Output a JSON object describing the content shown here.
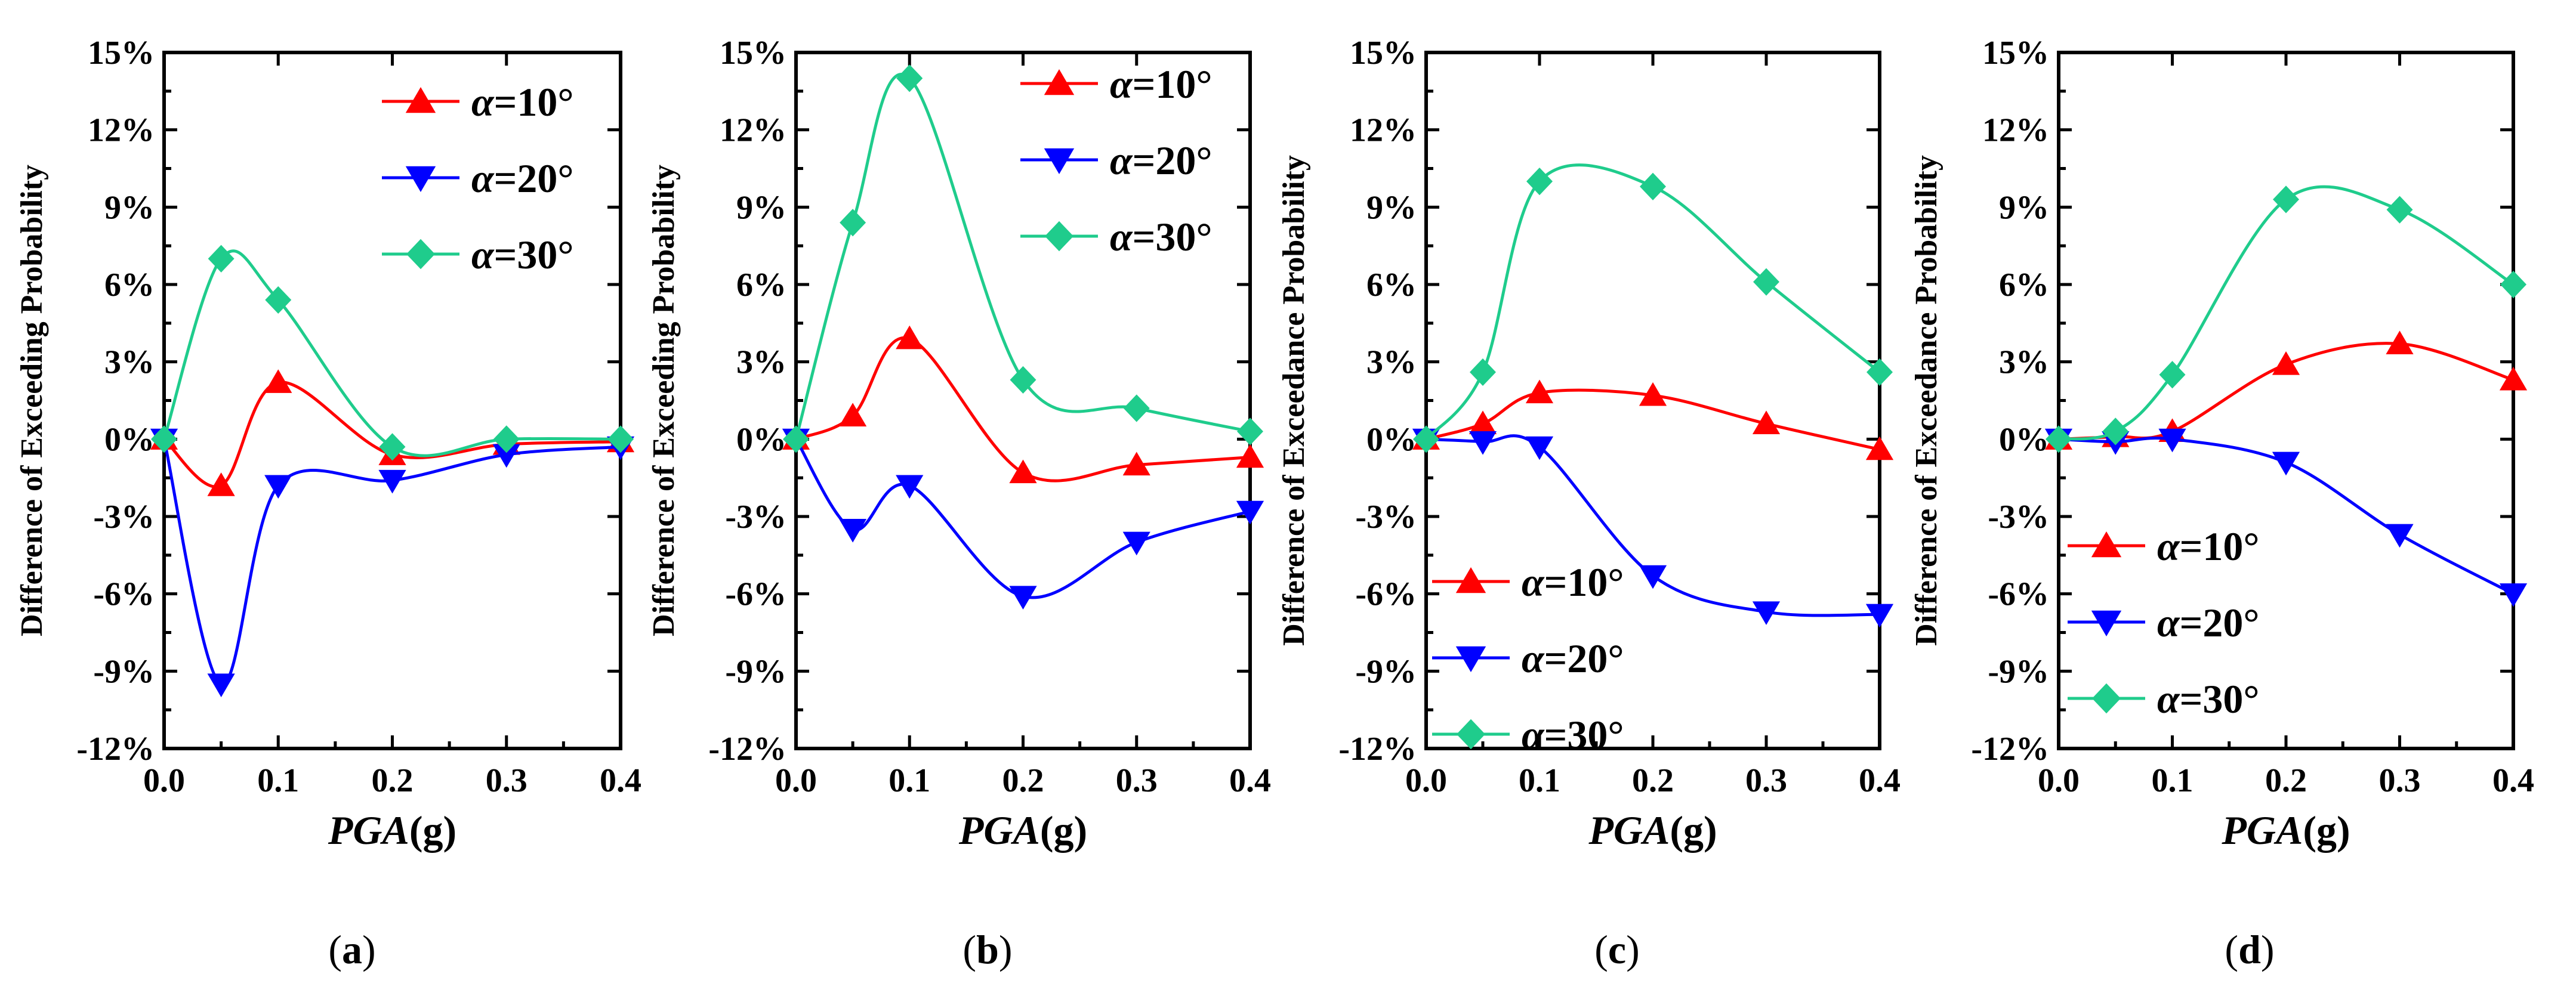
{
  "chart_data": [
    {
      "type": "line",
      "label": "a",
      "ylabel": "Difference of Exceeding Probability",
      "xlabel_main": "PGA",
      "xlabel_unit": "(g)",
      "x": [
        0.0,
        0.05,
        0.1,
        0.2,
        0.3,
        0.4
      ],
      "xlim": [
        0.0,
        0.4
      ],
      "ylim": [
        -12,
        15
      ],
      "xticks": [
        "0.0",
        "0.1",
        "0.2",
        "0.3",
        "0.4"
      ],
      "yticks": [
        "-12%",
        "-9%",
        "-6%",
        "-3%",
        "0%",
        "3%",
        "6%",
        "9%",
        "12%",
        "15%"
      ],
      "legend_position": "top-right",
      "series": [
        {
          "name": "α=10°",
          "color": "#ff0000",
          "marker": "triangle-up",
          "values": [
            0,
            -1.8,
            2.2,
            -0.6,
            -0.2,
            -0.1
          ]
        },
        {
          "name": "α=20°",
          "color": "#0000ff",
          "marker": "triangle-down",
          "values": [
            0,
            -9.5,
            -1.8,
            -1.6,
            -0.6,
            -0.3
          ]
        },
        {
          "name": "α=30°",
          "color": "#1fcc8c",
          "marker": "diamond",
          "values": [
            0,
            7.0,
            5.4,
            -0.3,
            0.0,
            0.0
          ]
        }
      ]
    },
    {
      "type": "line",
      "label": "b",
      "ylabel": "Difference of Exceeding Probability",
      "xlabel_main": "PGA",
      "xlabel_unit": "(g)",
      "x": [
        0.0,
        0.05,
        0.1,
        0.2,
        0.3,
        0.4
      ],
      "xlim": [
        0.0,
        0.4
      ],
      "ylim": [
        -12,
        15
      ],
      "xticks": [
        "0.0",
        "0.1",
        "0.2",
        "0.3",
        "0.4"
      ],
      "yticks": [
        "-12%",
        "-9%",
        "-6%",
        "-3%",
        "0%",
        "3%",
        "6%",
        "9%",
        "12%",
        "15%"
      ],
      "legend_position": "top-right",
      "series": [
        {
          "name": "α=10°",
          "color": "#ff0000",
          "marker": "triangle-up",
          "values": [
            0,
            0.9,
            3.9,
            -1.3,
            -1.0,
            -0.7
          ]
        },
        {
          "name": "α=20°",
          "color": "#0000ff",
          "marker": "triangle-down",
          "values": [
            0,
            -3.5,
            -1.8,
            -6.1,
            -4.0,
            -2.8
          ]
        },
        {
          "name": "α=30°",
          "color": "#1fcc8c",
          "marker": "diamond",
          "values": [
            0,
            8.4,
            14.0,
            2.3,
            1.2,
            0.3
          ]
        }
      ]
    },
    {
      "type": "line",
      "label": "c",
      "ylabel": "Difference of Exceedance Probability",
      "xlabel_main": "PGA",
      "xlabel_unit": "(g)",
      "x": [
        0.0,
        0.05,
        0.1,
        0.2,
        0.3,
        0.4
      ],
      "xlim": [
        0.0,
        0.4
      ],
      "ylim": [
        -12,
        15
      ],
      "xticks": [
        "0.0",
        "0.1",
        "0.2",
        "0.3",
        "0.4"
      ],
      "yticks": [
        "-12%",
        "-9%",
        "-6%",
        "-3%",
        "0%",
        "3%",
        "6%",
        "9%",
        "12%",
        "15%"
      ],
      "legend_position": "bottom-left",
      "series": [
        {
          "name": "α=10°",
          "color": "#ff0000",
          "marker": "triangle-up",
          "values": [
            0,
            0.6,
            1.8,
            1.7,
            0.6,
            -0.4
          ]
        },
        {
          "name": "α=20°",
          "color": "#0000ff",
          "marker": "triangle-down",
          "values": [
            0,
            -0.1,
            -0.3,
            -5.3,
            -6.7,
            -6.8
          ]
        },
        {
          "name": "α=30°",
          "color": "#1fcc8c",
          "marker": "diamond",
          "values": [
            0,
            2.6,
            10.0,
            9.8,
            6.1,
            2.6
          ]
        }
      ]
    },
    {
      "type": "line",
      "label": "d",
      "ylabel": "Difference of Exceedance Probability",
      "xlabel_main": "PGA",
      "xlabel_unit": "(g)",
      "x": [
        0.0,
        0.05,
        0.1,
        0.2,
        0.3,
        0.4
      ],
      "xlim": [
        0.0,
        0.4
      ],
      "ylim": [
        -12,
        15
      ],
      "xticks": [
        "0.0",
        "0.1",
        "0.2",
        "0.3",
        "0.4"
      ],
      "yticks": [
        "-12%",
        "-9%",
        "-6%",
        "-3%",
        "0%",
        "3%",
        "6%",
        "9%",
        "12%",
        "15%"
      ],
      "legend_position": "middle-left",
      "series": [
        {
          "name": "α=10°",
          "color": "#ff0000",
          "marker": "triangle-up",
          "values": [
            0,
            0.1,
            0.3,
            2.9,
            3.7,
            2.3
          ]
        },
        {
          "name": "α=20°",
          "color": "#0000ff",
          "marker": "triangle-down",
          "values": [
            0,
            -0.1,
            0.0,
            -0.9,
            -3.7,
            -6.0
          ]
        },
        {
          "name": "α=30°",
          "color": "#1fcc8c",
          "marker": "diamond",
          "values": [
            0,
            0.3,
            2.5,
            9.3,
            8.9,
            6.0
          ]
        }
      ]
    }
  ]
}
